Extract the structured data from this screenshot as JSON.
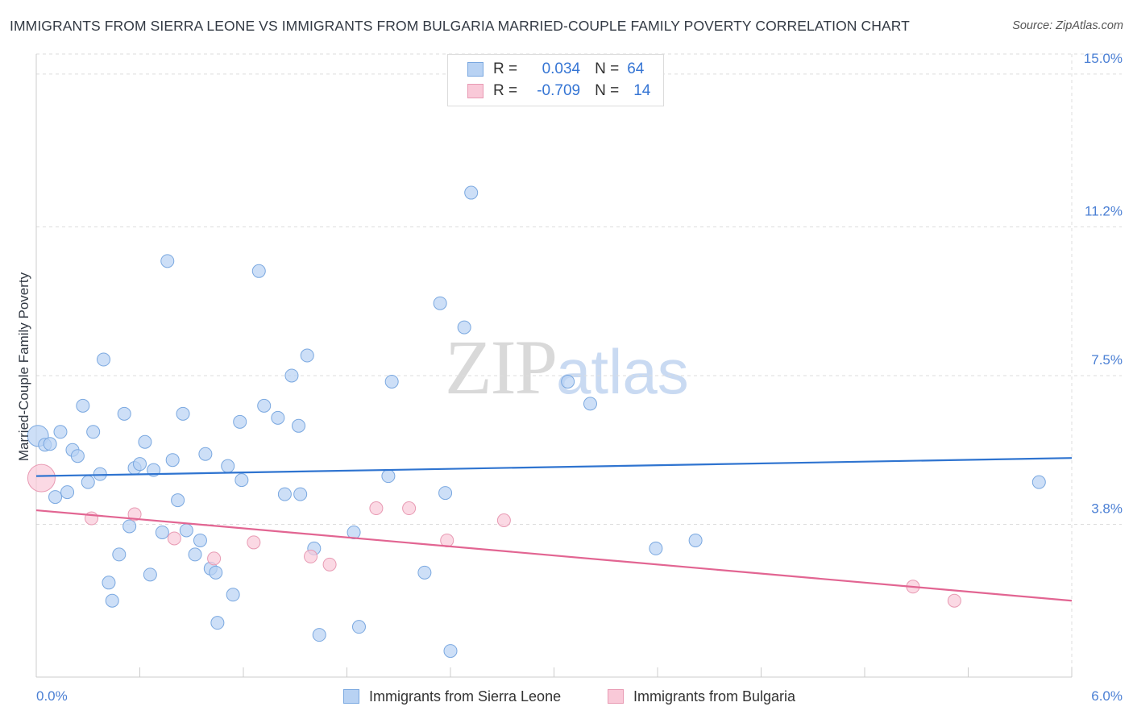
{
  "title": "IMMIGRANTS FROM SIERRA LEONE VS IMMIGRANTS FROM BULGARIA MARRIED-COUPLE FAMILY POVERTY CORRELATION CHART",
  "source": "Source: ZipAtlas.com",
  "watermark": {
    "zip": "ZIP",
    "atlas": "atlas"
  },
  "legend": {
    "rows": [
      {
        "r_label": "R =",
        "r_value": "0.034",
        "n_label": "N =",
        "n_value": "64"
      },
      {
        "r_label": "R =",
        "r_value": "-0.709",
        "n_label": "N =",
        "n_value": "14"
      }
    ]
  },
  "colors": {
    "sierra_leone_fill": "#b8d2f3",
    "sierra_leone_stroke": "#7aa8e0",
    "sierra_leone_line": "#2f74d0",
    "bulgaria_fill": "#f9c9d8",
    "bulgaria_stroke": "#e89ab3",
    "bulgaria_line": "#e26592",
    "tick_text": "#4a7fd4",
    "grid": "#dddddd"
  },
  "chart_data": {
    "type": "scatter",
    "title": "IMMIGRANTS FROM SIERRA LEONE VS IMMIGRANTS FROM BULGARIA MARRIED-COUPLE FAMILY POVERTY CORRELATION CHART",
    "xlabel": "",
    "ylabel": "Married-Couple Family Poverty",
    "xlim": [
      0,
      6.0
    ],
    "ylim": [
      0,
      15.5
    ],
    "x_tick_labels": [
      "0.0%",
      "6.0%"
    ],
    "y_ticks": [
      3.8,
      7.5,
      11.2,
      15.0
    ],
    "y_tick_labels": [
      "3.8%",
      "7.5%",
      "11.2%",
      "15.0%"
    ],
    "grid": true,
    "legend_placement": "top-center",
    "series": [
      {
        "name": "Immigrants from Sierra Leone",
        "points": [
          [
            0.01,
            6.0
          ],
          [
            0.05,
            5.78
          ],
          [
            0.08,
            5.8
          ],
          [
            0.11,
            4.48
          ],
          [
            0.14,
            6.1
          ],
          [
            0.18,
            4.6
          ],
          [
            0.21,
            5.65
          ],
          [
            0.24,
            5.5
          ],
          [
            0.27,
            6.75
          ],
          [
            0.3,
            4.85
          ],
          [
            0.33,
            6.1
          ],
          [
            0.37,
            5.05
          ],
          [
            0.39,
            7.9
          ],
          [
            0.42,
            2.35
          ],
          [
            0.44,
            1.9
          ],
          [
            0.48,
            3.05
          ],
          [
            0.51,
            6.55
          ],
          [
            0.54,
            3.75
          ],
          [
            0.57,
            5.2
          ],
          [
            0.6,
            5.3
          ],
          [
            0.63,
            5.85
          ],
          [
            0.66,
            2.55
          ],
          [
            0.68,
            5.15
          ],
          [
            0.73,
            3.6
          ],
          [
            0.76,
            10.35
          ],
          [
            0.79,
            5.4
          ],
          [
            0.82,
            4.4
          ],
          [
            0.85,
            6.55
          ],
          [
            0.87,
            3.65
          ],
          [
            0.92,
            3.05
          ],
          [
            0.95,
            3.4
          ],
          [
            0.98,
            5.55
          ],
          [
            1.01,
            2.7
          ],
          [
            1.04,
            2.6
          ],
          [
            1.05,
            1.35
          ],
          [
            1.11,
            5.25
          ],
          [
            1.14,
            2.05
          ],
          [
            1.18,
            6.35
          ],
          [
            1.19,
            4.9
          ],
          [
            1.29,
            10.1
          ],
          [
            1.32,
            6.75
          ],
          [
            1.4,
            6.45
          ],
          [
            1.44,
            4.55
          ],
          [
            1.48,
            7.5
          ],
          [
            1.52,
            6.25
          ],
          [
            1.53,
            4.55
          ],
          [
            1.57,
            8.0
          ],
          [
            1.61,
            3.2
          ],
          [
            1.64,
            1.05
          ],
          [
            1.84,
            3.6
          ],
          [
            1.87,
            1.25
          ],
          [
            2.06,
            7.35
          ],
          [
            2.04,
            5.0
          ],
          [
            2.25,
            2.6
          ],
          [
            2.34,
            9.3
          ],
          [
            2.37,
            4.58
          ],
          [
            2.4,
            0.65
          ],
          [
            2.48,
            8.7
          ],
          [
            2.52,
            12.05
          ],
          [
            3.08,
            7.35
          ],
          [
            3.21,
            6.8
          ],
          [
            3.59,
            3.2
          ],
          [
            3.82,
            3.4
          ],
          [
            5.81,
            4.85
          ]
        ],
        "trend": {
          "x": [
            0,
            6.0
          ],
          "y": [
            5.0,
            5.45
          ]
        }
      },
      {
        "name": "Immigrants from Bulgaria",
        "points": [
          [
            0.03,
            4.95
          ],
          [
            0.32,
            3.95
          ],
          [
            0.57,
            4.05
          ],
          [
            0.8,
            3.45
          ],
          [
            1.03,
            2.95
          ],
          [
            1.26,
            3.35
          ],
          [
            1.59,
            3.0
          ],
          [
            1.7,
            2.8
          ],
          [
            1.97,
            4.2
          ],
          [
            2.16,
            4.2
          ],
          [
            2.38,
            3.4
          ],
          [
            2.71,
            3.9
          ],
          [
            5.08,
            2.25
          ],
          [
            5.32,
            1.9
          ]
        ],
        "trend": {
          "x": [
            0,
            6.0
          ],
          "y": [
            4.15,
            1.9
          ]
        }
      }
    ]
  }
}
